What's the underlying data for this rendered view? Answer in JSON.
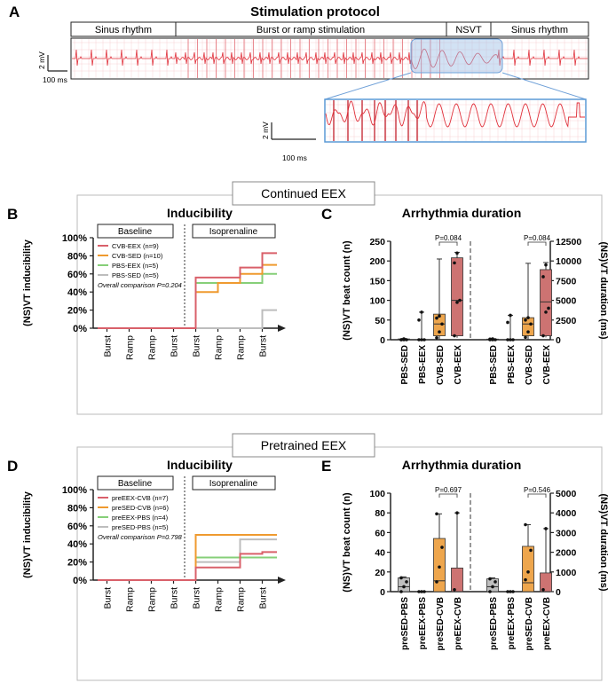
{
  "panel_a": {
    "letter": "A",
    "title": "Stimulation protocol",
    "segments": [
      "Sinus rhythm",
      "Burst or ramp stimulation",
      "NSVT",
      "Sinus rhythm"
    ],
    "scale_mv": "2 mV",
    "scale_ms": "100 ms",
    "zoom_scale_mv": "2 mV",
    "zoom_scale_ms": "100 ms"
  },
  "section_continued": "Continued EEX",
  "section_pretrained": "Pretrained EEX",
  "colors": {
    "red": "#d9606a",
    "orange": "#ef9a2f",
    "green": "#86cf78",
    "grey": "#bdbdbd",
    "red_fill": "#cd7372",
    "orange_fill": "#eea64d",
    "grey_fill": "#bfbfbf",
    "ecg": "#e0303a"
  },
  "chart_data": [
    {
      "id": "B",
      "type": "line",
      "step": true,
      "title": "Inducibility",
      "ylabel": "(NS)VT inducibility",
      "group_labels": [
        "Baseline",
        "Isoprenaline"
      ],
      "categories": [
        "Burst",
        "Ramp",
        "Ramp",
        "Burst",
        "Burst",
        "Ramp",
        "Ramp",
        "Burst"
      ],
      "yticks": [
        "0%",
        "20%",
        "40%",
        "60%",
        "80%",
        "100%"
      ],
      "ylim": [
        0,
        100
      ],
      "comparison": "Overall comparison P=0.204",
      "series": [
        {
          "name": "CVB-EEX (n=9)",
          "color": "#d9606a",
          "values": [
            0,
            0,
            0,
            0,
            56,
            56,
            67,
            83
          ]
        },
        {
          "name": "CVB-SED (n=10)",
          "color": "#ef9a2f",
          "values": [
            0,
            0,
            0,
            0,
            40,
            50,
            60,
            70
          ]
        },
        {
          "name": "PBS-EEX (n=5)",
          "color": "#86cf78",
          "values": [
            0,
            0,
            0,
            0,
            50,
            50,
            50,
            60
          ]
        },
        {
          "name": "PBS-SED (n=5)",
          "color": "#bdbdbd",
          "values": [
            0,
            0,
            0,
            0,
            0,
            0,
            0,
            20
          ]
        }
      ]
    },
    {
      "id": "C",
      "type": "bar",
      "title": "Arrhythmia duration",
      "ylabel_left": "(NS)VT beat count (n)",
      "ylabel_right": "(NS)VT duration (ms)",
      "left": {
        "categories": [
          "PBS-SED",
          "PBS-EEX",
          "CVB-SED",
          "CVB-EEX"
        ],
        "ylim": [
          0,
          250
        ],
        "yticks": [
          "0",
          "50",
          "100",
          "150",
          "200",
          "250"
        ],
        "bars": [
          {
            "median": 0,
            "q1": 0,
            "q3": 2,
            "min": 0,
            "max": 3,
            "color": "#bfbfbf",
            "points": [
              0,
              0,
              0,
              0,
              2
            ]
          },
          {
            "median": 0,
            "q1": 0,
            "q3": 0,
            "min": 0,
            "max": 70,
            "color": "#bfbfbf",
            "points": [
              0,
              0,
              0,
              50,
              70
            ]
          },
          {
            "median": 40,
            "q1": 10,
            "q3": 65,
            "min": 0,
            "max": 205,
            "color": "#eea64d",
            "points": [
              5,
              20,
              40,
              55,
              60
            ]
          },
          {
            "median": 100,
            "q1": 10,
            "q3": 208,
            "min": 5,
            "max": 222,
            "color": "#cd7372",
            "points": [
              10,
              95,
              100,
              195,
              220
            ]
          }
        ],
        "pvalue": "P=0.084"
      },
      "right": {
        "categories": [
          "PBS-SED",
          "PBS-EEX",
          "CVB-SED",
          "CVB-EEX"
        ],
        "ylim": [
          0,
          12500
        ],
        "yticks": [
          "0",
          "2500",
          "5000",
          "7500",
          "10000",
          "12500"
        ],
        "bars": [
          {
            "median": 0,
            "q1": 0,
            "q3": 80,
            "min": 0,
            "max": 120,
            "color": "#bfbfbf",
            "points": [
              0,
              0,
              0,
              80,
              100
            ]
          },
          {
            "median": 0,
            "q1": 0,
            "q3": 0,
            "min": 0,
            "max": 3100,
            "color": "#bfbfbf",
            "points": [
              0,
              0,
              0,
              2200,
              3100
            ]
          },
          {
            "median": 2000,
            "q1": 500,
            "q3": 2800,
            "min": 0,
            "max": 9700,
            "color": "#eea64d",
            "points": [
              300,
              1000,
              2000,
              2500,
              2800
            ]
          },
          {
            "median": 4800,
            "q1": 500,
            "q3": 8900,
            "min": 300,
            "max": 9800,
            "color": "#cd7372",
            "points": [
              500,
              3500,
              4000,
              8000,
              9500
            ]
          }
        ],
        "pvalue": "P=0.084"
      }
    },
    {
      "id": "D",
      "type": "line",
      "step": true,
      "title": "Inducibility",
      "ylabel": "(NS)VT inducibility",
      "group_labels": [
        "Baseline",
        "Isoprenaline"
      ],
      "categories": [
        "Burst",
        "Ramp",
        "Ramp",
        "Burst",
        "Burst",
        "Ramp",
        "Ramp",
        "Burst"
      ],
      "yticks": [
        "0%",
        "20%",
        "40%",
        "60%",
        "80%",
        "100%"
      ],
      "ylim": [
        0,
        100
      ],
      "comparison": "Overall comparison P=0.798",
      "series": [
        {
          "name": "preEEX-CVB (n=7)",
          "color": "#d9606a",
          "values": [
            0,
            0,
            0,
            0,
            14,
            14,
            29,
            31
          ]
        },
        {
          "name": "preSED-CVB (n=6)",
          "color": "#ef9a2f",
          "values": [
            0,
            0,
            0,
            0,
            50,
            50,
            50,
            50
          ]
        },
        {
          "name": "preEEX-PBS (n=4)",
          "color": "#86cf78",
          "values": [
            0,
            0,
            0,
            0,
            25,
            25,
            25,
            25
          ]
        },
        {
          "name": "preSED-PBS (n=5)",
          "color": "#bdbdbd",
          "values": [
            0,
            0,
            0,
            0,
            20,
            20,
            45,
            45
          ]
        }
      ]
    },
    {
      "id": "E",
      "type": "bar",
      "title": "Arrhythmia duration",
      "ylabel_left": "(NS)VT beat count (n)",
      "ylabel_right": "(NS)VT duration (ms)",
      "left": {
        "categories": [
          "preSED-PBS",
          "preEEX-PBS",
          "preSED-CVB",
          "preEEX-CVB"
        ],
        "ylim": [
          0,
          100
        ],
        "yticks": [
          "0",
          "20",
          "40",
          "60",
          "80",
          "100"
        ],
        "bars": [
          {
            "median": 5,
            "q1": 0,
            "q3": 14,
            "min": 0,
            "max": 15,
            "color": "#bfbfbf",
            "points": [
              0,
              5,
              10,
              14
            ]
          },
          {
            "median": 0,
            "q1": 0,
            "q3": 0,
            "min": 0,
            "max": 0,
            "color": "#bfbfbf",
            "points": [
              0,
              0,
              0
            ]
          },
          {
            "median": 11,
            "q1": 0,
            "q3": 54,
            "min": 0,
            "max": 79,
            "color": "#eea64d",
            "points": [
              10,
              25,
              45,
              79
            ]
          },
          {
            "median": 0,
            "q1": 0,
            "q3": 24,
            "min": 0,
            "max": 80,
            "color": "#cd7372",
            "points": [
              2,
              80
            ]
          }
        ],
        "pvalue": "P=0.697"
      },
      "right": {
        "categories": [
          "preSED-PBS",
          "preEEX-PBS",
          "preSED-CVB",
          "preEEX-CVB"
        ],
        "ylim": [
          0,
          5000
        ],
        "yticks": [
          "0",
          "1000",
          "2000",
          "3000",
          "4000",
          "5000"
        ],
        "bars": [
          {
            "median": 250,
            "q1": 0,
            "q3": 650,
            "min": 0,
            "max": 700,
            "color": "#bfbfbf",
            "points": [
              0,
              250,
              500,
              650
            ]
          },
          {
            "median": 0,
            "q1": 0,
            "q3": 0,
            "min": 0,
            "max": 0,
            "color": "#bfbfbf",
            "points": [
              0,
              0,
              0
            ]
          },
          {
            "median": 450,
            "q1": 0,
            "q3": 2300,
            "min": 0,
            "max": 3400,
            "color": "#eea64d",
            "points": [
              600,
              1000,
              2100,
              3400
            ]
          },
          {
            "median": 0,
            "q1": 0,
            "q3": 950,
            "min": 0,
            "max": 3200,
            "color": "#cd7372",
            "points": [
              100,
              3200
            ]
          }
        ],
        "pvalue": "P=0.546"
      }
    }
  ]
}
